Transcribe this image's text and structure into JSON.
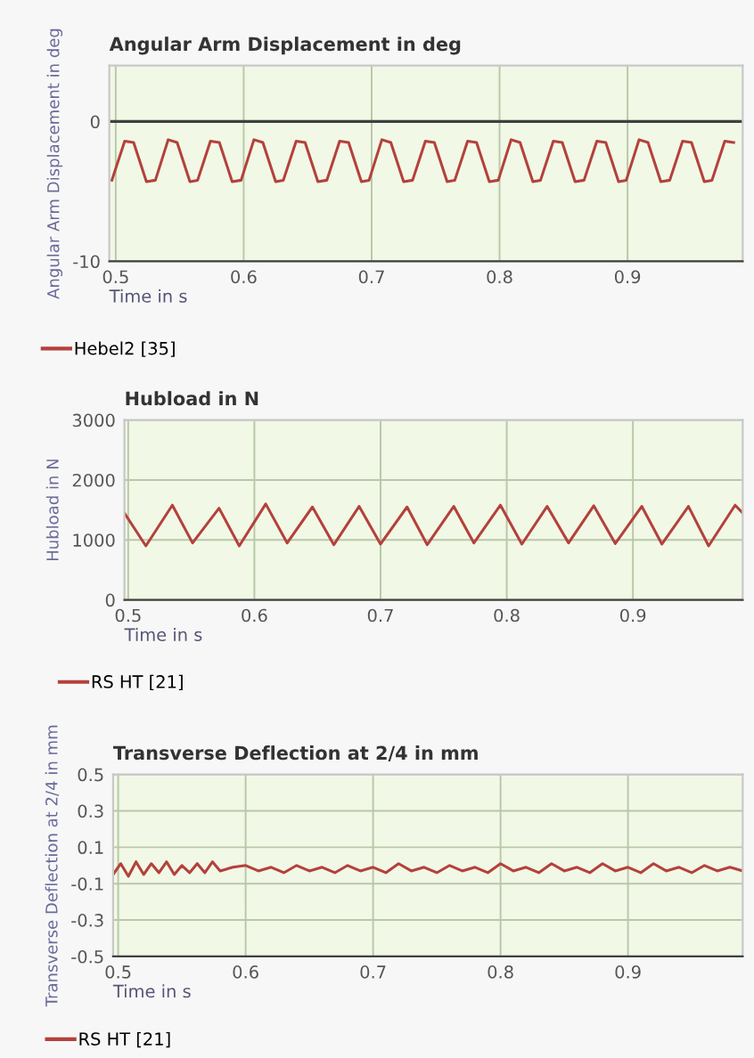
{
  "chart_data": [
    {
      "type": "line",
      "title": "Angular Arm Displacement in deg",
      "xlabel": "Time in s",
      "ylabel": "Angular Arm Displacement in deg",
      "series": [
        {
          "name": "Hebel2 [35]",
          "color": "#b4413c",
          "x": [
            0.497,
            0.507,
            0.514,
            0.524,
            0.531,
            0.541,
            0.548,
            0.558,
            0.564,
            0.574,
            0.581,
            0.591,
            0.598,
            0.608,
            0.615,
            0.625,
            0.631,
            0.641,
            0.648,
            0.658,
            0.665,
            0.675,
            0.682,
            0.692,
            0.698,
            0.708,
            0.715,
            0.725,
            0.732,
            0.742,
            0.749,
            0.759,
            0.765,
            0.775,
            0.782,
            0.792,
            0.799,
            0.809,
            0.816,
            0.826,
            0.832,
            0.842,
            0.849,
            0.859,
            0.866,
            0.876,
            0.883,
            0.893,
            0.899,
            0.909,
            0.916,
            0.926,
            0.933,
            0.943,
            0.95,
            0.96,
            0.966,
            0.976,
            0.983
          ],
          "values": [
            -4.2,
            -1.4,
            -1.5,
            -4.3,
            -4.2,
            -1.3,
            -1.5,
            -4.3,
            -4.2,
            -1.4,
            -1.5,
            -4.3,
            -4.2,
            -1.3,
            -1.5,
            -4.3,
            -4.2,
            -1.4,
            -1.5,
            -4.3,
            -4.2,
            -1.4,
            -1.5,
            -4.3,
            -4.2,
            -1.3,
            -1.5,
            -4.3,
            -4.2,
            -1.4,
            -1.5,
            -4.3,
            -4.2,
            -1.4,
            -1.5,
            -4.3,
            -4.2,
            -1.3,
            -1.5,
            -4.3,
            -4.2,
            -1.4,
            -1.5,
            -4.3,
            -4.2,
            -1.4,
            -1.5,
            -4.3,
            -4.2,
            -1.3,
            -1.5,
            -4.3,
            -4.2,
            -1.4,
            -1.5,
            -4.3,
            -4.2,
            -1.4,
            -1.5
          ]
        }
      ],
      "xlim": [
        0.495,
        0.99
      ],
      "ylim": [
        -10,
        4
      ],
      "xticks": [
        0.5,
        0.6,
        0.7,
        0.8,
        0.9
      ],
      "yticks": [
        -10,
        0
      ],
      "ref_lines": [
        {
          "axis": "y",
          "value": 0,
          "color": "#404040"
        }
      ],
      "grid": true,
      "legend": "bottom"
    },
    {
      "type": "line",
      "title": "Hubload in N",
      "xlabel": "Time in s",
      "ylabel": "Hubload in N",
      "series": [
        {
          "name": "RS HT [21]",
          "color": "#b4413c",
          "x": [
            0.497,
            0.514,
            0.535,
            0.551,
            0.572,
            0.588,
            0.609,
            0.626,
            0.646,
            0.663,
            0.683,
            0.7,
            0.721,
            0.737,
            0.758,
            0.774,
            0.795,
            0.812,
            0.832,
            0.849,
            0.869,
            0.886,
            0.907,
            0.923,
            0.944,
            0.96,
            0.981,
            0.987
          ],
          "values": [
            1450,
            900,
            1580,
            950,
            1530,
            900,
            1600,
            950,
            1550,
            920,
            1560,
            930,
            1550,
            920,
            1560,
            950,
            1580,
            930,
            1560,
            950,
            1570,
            940,
            1560,
            930,
            1560,
            900,
            1580,
            1450
          ]
        }
      ],
      "xlim": [
        0.497,
        0.987
      ],
      "ylim": [
        0,
        3000
      ],
      "xticks": [
        0.5,
        0.6,
        0.7,
        0.8,
        0.9
      ],
      "yticks": [
        0,
        1000,
        2000,
        3000
      ],
      "grid": true,
      "legend": "bottom"
    },
    {
      "type": "line",
      "title": "Transverse Deflection at 2/4 in mm",
      "xlabel": "Time in s",
      "ylabel": "Transverse Deflection at 2/4 in mm",
      "series": [
        {
          "name": "RS HT [21]",
          "color": "#b4413c",
          "x": [
            0.496,
            0.502,
            0.508,
            0.514,
            0.52,
            0.526,
            0.532,
            0.538,
            0.544,
            0.55,
            0.556,
            0.562,
            0.568,
            0.574,
            0.58,
            0.59,
            0.6,
            0.61,
            0.62,
            0.63,
            0.64,
            0.65,
            0.66,
            0.67,
            0.68,
            0.69,
            0.7,
            0.71,
            0.72,
            0.73,
            0.74,
            0.75,
            0.76,
            0.77,
            0.78,
            0.79,
            0.8,
            0.81,
            0.82,
            0.83,
            0.84,
            0.85,
            0.86,
            0.87,
            0.88,
            0.89,
            0.9,
            0.91,
            0.92,
            0.93,
            0.94,
            0.95,
            0.96,
            0.97,
            0.98,
            0.99
          ],
          "values": [
            -0.05,
            0.01,
            -0.06,
            0.02,
            -0.05,
            0.01,
            -0.04,
            0.02,
            -0.05,
            0.0,
            -0.04,
            0.01,
            -0.04,
            0.02,
            -0.03,
            -0.01,
            0.0,
            -0.03,
            -0.01,
            -0.04,
            0.0,
            -0.03,
            -0.01,
            -0.04,
            0.0,
            -0.03,
            -0.01,
            -0.04,
            0.01,
            -0.03,
            -0.01,
            -0.04,
            0.0,
            -0.03,
            -0.01,
            -0.04,
            0.01,
            -0.03,
            -0.01,
            -0.04,
            0.01,
            -0.03,
            -0.01,
            -0.04,
            0.01,
            -0.03,
            -0.01,
            -0.04,
            0.01,
            -0.03,
            -0.01,
            -0.04,
            0.0,
            -0.03,
            -0.01,
            -0.03
          ]
        }
      ],
      "xlim": [
        0.496,
        0.99
      ],
      "ylim": [
        -0.5,
        0.5
      ],
      "xticks": [
        0.5,
        0.6,
        0.7,
        0.8,
        0.9
      ],
      "yticks": [
        0.5,
        0.3,
        0.1,
        -0.1,
        -0.3,
        -0.5
      ],
      "grid": true,
      "legend": "bottom"
    }
  ]
}
